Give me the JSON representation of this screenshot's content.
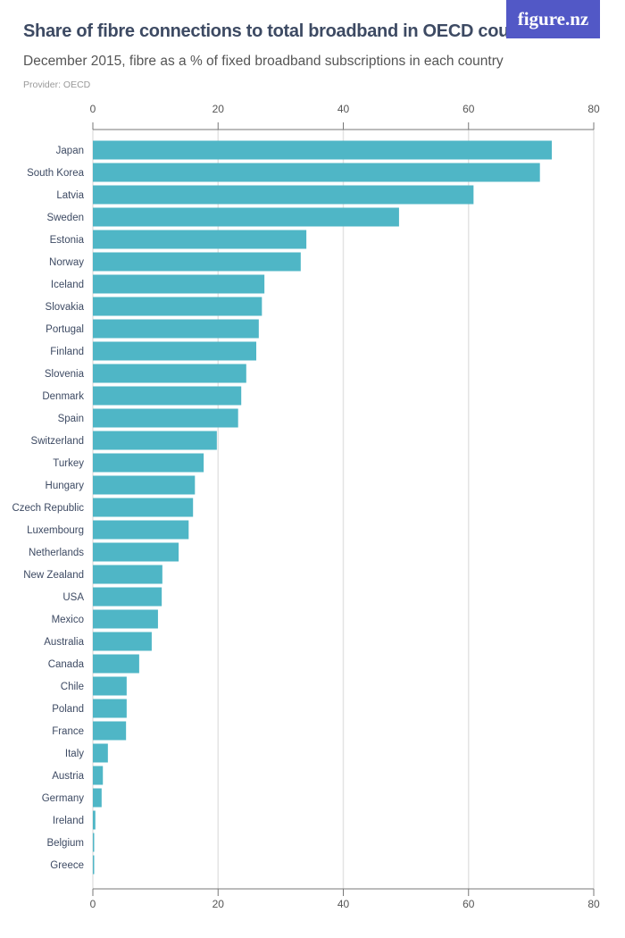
{
  "header": {
    "title": "Share of fibre connections to total broadband in OECD countries",
    "subtitle": "December 2015, fibre as a  % of fixed broadband subscriptions in each country",
    "provider": "Provider: OECD",
    "logo": "figure.nz",
    "logo_color": "#5258c6"
  },
  "chart_data": {
    "type": "bar",
    "orientation": "horizontal",
    "title": "Share of fibre connections to total broadband in OECD countries",
    "subtitle": "December 2015, fibre as a  % of fixed broadband subscriptions in each country",
    "xlim": [
      0,
      80
    ],
    "ticks": [
      0,
      20,
      40,
      60,
      80
    ],
    "grid": true,
    "bar_color": "#4fb6c6",
    "categories": [
      "Japan",
      "South Korea",
      "Latvia",
      "Sweden",
      "Estonia",
      "Norway",
      "Iceland",
      "Slovakia",
      "Portugal",
      "Finland",
      "Slovenia",
      "Denmark",
      "Spain",
      "Switzerland",
      "Turkey",
      "Hungary",
      "Czech Republic",
      "Luxembourg",
      "Netherlands",
      "New Zealand",
      "USA",
      "Mexico",
      "Australia",
      "Canada",
      "Chile",
      "Poland",
      "France",
      "Italy",
      "Austria",
      "Germany",
      "Ireland",
      "Belgium",
      "Greece"
    ],
    "values": [
      73.3,
      71.4,
      60.8,
      48.9,
      34.1,
      33.2,
      27.4,
      27.0,
      26.5,
      26.1,
      24.5,
      23.7,
      23.2,
      19.8,
      17.7,
      16.3,
      16.0,
      15.3,
      13.7,
      11.1,
      11.0,
      10.4,
      9.4,
      7.4,
      5.4,
      5.4,
      5.3,
      2.4,
      1.6,
      1.4,
      0.4,
      0.1,
      0.1
    ]
  }
}
